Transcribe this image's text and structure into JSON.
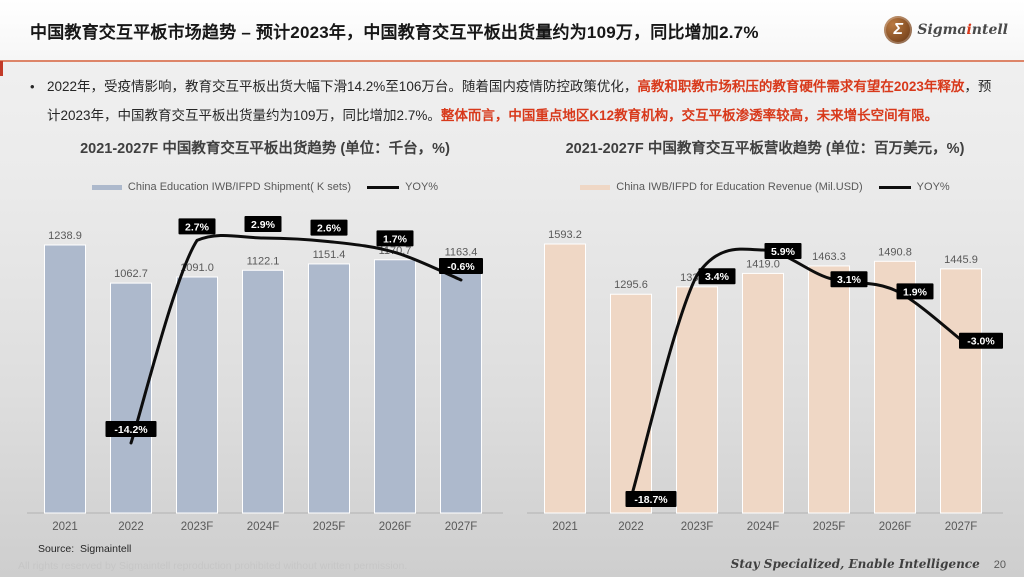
{
  "header": {
    "title": "中国教育交互平板市场趋势 – 预计2023年，中国教育交互平板出货量约为109万，同比增加2.7%",
    "logo": {
      "glyph": "Σ",
      "part1": "Sigma",
      "part2": "i",
      "part3": "ntell"
    }
  },
  "bullet": {
    "marker": "•",
    "segments": [
      {
        "text": "2022年，受疫情影响，教育交互平板出货大幅下滑14.2%至106万台。随着国内疫情防控政策优化，",
        "emphasis": false
      },
      {
        "text": "高教和职教市场积压的教育硬件需求有望在2023年释放",
        "emphasis": true
      },
      {
        "text": "，预计2023年，中国教育交互平板出货量约为109万，同比增加2.7%。",
        "emphasis": false
      },
      {
        "text": "整体而言，中国重点地区K12教育机构，交互平板渗透率较高，未来增长空间有限。",
        "emphasis": true
      }
    ]
  },
  "chart_data": [
    {
      "type": "bar",
      "title": "2021-2027F 中国教育交互平板出货趋势 (单位：千台，%)",
      "categories": [
        "2021",
        "2022",
        "2023F",
        "2024F",
        "2025F",
        "2026F",
        "2027F"
      ],
      "series": [
        {
          "name": "China Education IWB/IFPD Shipment( K sets)",
          "kind": "bar",
          "color": "#adb9cc",
          "values": [
            1238.9,
            1062.7,
            1091.0,
            1122.1,
            1151.4,
            1170.7,
            1163.4
          ]
        },
        {
          "name": "YOY%",
          "kind": "line",
          "color": "#0d0d0d",
          "values": [
            null,
            -14.2,
            2.7,
            2.9,
            2.6,
            1.7,
            -0.6
          ],
          "labels": [
            null,
            "-14.2%",
            "2.7%",
            "2.9%",
            "2.6%",
            "1.7%",
            "-0.6%"
          ]
        }
      ],
      "xlabel": "",
      "ylabel": "千台 / %",
      "ylim_bar": [
        0,
        1350
      ],
      "ylim_yoy": [
        -16,
        4
      ],
      "grid": false,
      "legend_position": "top"
    },
    {
      "type": "bar",
      "title": "2021-2027F 中国教育交互平板营收趋势 (单位：百万美元，%)",
      "categories": [
        "2021",
        "2022",
        "2023F",
        "2024F",
        "2025F",
        "2026F",
        "2027F"
      ],
      "series": [
        {
          "name": "China IWB/IFPD for Education Revenue (Mil.USD)",
          "kind": "bar",
          "color": "#efd7c5",
          "values": [
            1593.2,
            1295.6,
            1339.6,
            1419.0,
            1463.3,
            1490.8,
            1445.9
          ]
        },
        {
          "name": "YOY%",
          "kind": "line",
          "color": "#0d0d0d",
          "values": [
            null,
            -18.7,
            3.4,
            5.9,
            3.1,
            1.9,
            -3.0
          ],
          "labels": [
            null,
            "-18.7%",
            "3.4%",
            "5.9%",
            "3.1%",
            "1.9%",
            "-3.0%"
          ]
        }
      ],
      "xlabel": "",
      "ylabel": "百万美元 / %",
      "ylim_bar": [
        0,
        1700
      ],
      "ylim_yoy": [
        -20,
        7
      ],
      "grid": false,
      "legend_position": "top"
    }
  ],
  "footer": {
    "source": "Source:  Sigmaintell",
    "copyright": "All rights reserved by Sigmaintell reproduction prohibited without written permission.",
    "motto": "Stay Specialized, Enable Intelligence",
    "page": "20"
  },
  "colors": {
    "emphasis_red": "#d8391b",
    "header_divider": "#dd8569",
    "bar_left": "#adb9cc",
    "bar_right": "#efd7c5",
    "yoy_line": "#0d0d0d"
  }
}
